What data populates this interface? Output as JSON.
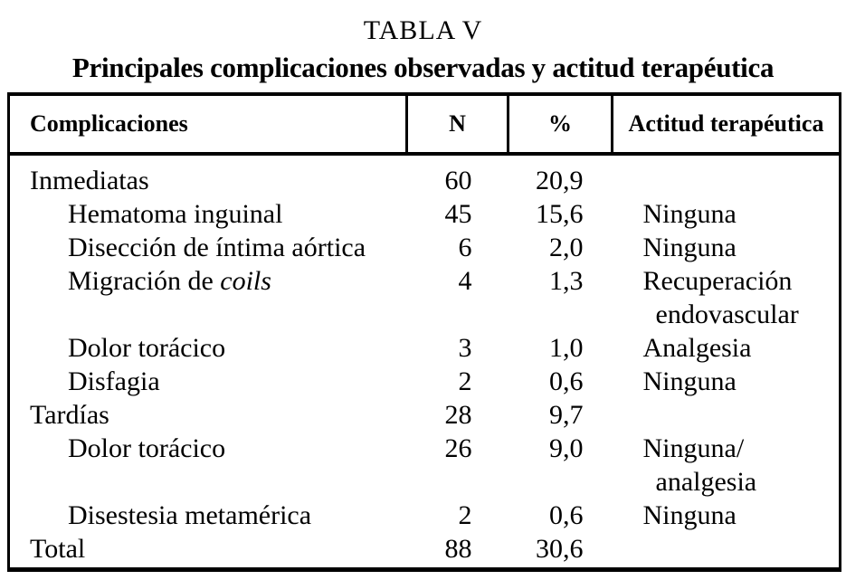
{
  "title": "TABLA V",
  "subtitle": "Principales complicaciones observadas y actitud terapéutica",
  "table": {
    "headers": [
      "Complicaciones",
      "N",
      "%",
      "Actitud terapéutica"
    ],
    "rows": [
      {
        "name": "Inmediatas",
        "indent": false,
        "n": "60",
        "pct": "20,9",
        "action_lines": []
      },
      {
        "name": "Hematoma inguinal",
        "indent": true,
        "n": "45",
        "pct": "15,6",
        "action_lines": [
          "Ninguna"
        ]
      },
      {
        "name": "Disección de íntima aórtica",
        "indent": true,
        "n": "6",
        "pct": "2,0",
        "action_lines": [
          "Ninguna"
        ]
      },
      {
        "name": "Migración de ",
        "name_italic": "coils",
        "indent": true,
        "n": "4",
        "pct": "1,3",
        "action_lines": [
          "Recuperación",
          "endovascular"
        ]
      },
      {
        "name": "Dolor torácico",
        "indent": true,
        "n": "3",
        "pct": "1,0",
        "action_lines": [
          "Analgesia"
        ]
      },
      {
        "name": "Disfagia",
        "indent": true,
        "n": "2",
        "pct": "0,6",
        "action_lines": [
          "Ninguna"
        ]
      },
      {
        "name": "Tardías",
        "indent": false,
        "n": "28",
        "pct": "9,7",
        "action_lines": []
      },
      {
        "name": "Dolor torácico",
        "indent": true,
        "n": "26",
        "pct": "9,0",
        "action_lines": [
          "Ninguna/",
          "analgesia"
        ]
      },
      {
        "name": "Disestesia metamérica",
        "indent": true,
        "n": "2",
        "pct": "0,6",
        "action_lines": [
          "Ninguna"
        ]
      },
      {
        "name": "Total",
        "indent": false,
        "n": "88",
        "pct": "30,6",
        "action_lines": []
      }
    ]
  }
}
